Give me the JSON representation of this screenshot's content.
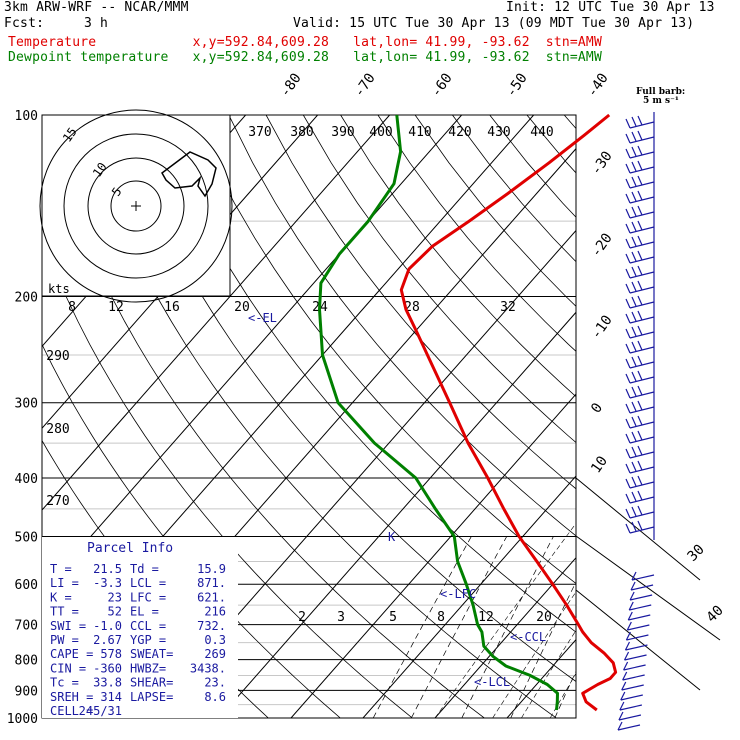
{
  "header": {
    "model": "3km ARW-WRF -- NCAR/MMM",
    "init": "Init: 12 UTC Tue 30 Apr 13",
    "fcst_label": "Fcst:",
    "fcst_value": "3 h",
    "valid": "Valid: 15 UTC Tue 30 Apr 13 (09 MDT Tue 30 Apr 13)",
    "temp_line": "Temperature            x,y=592.84,609.28   lat,lon= 41.99, -93.62  stn=AMW",
    "dew_line": "Dewpoint temperature   x,y=592.84,609.28   lat,lon= 41.99, -93.62  stn=AMW"
  },
  "colors": {
    "temperature": "#e00000",
    "dewpoint": "#008000",
    "parcel": "#1a1aa0",
    "grid": "#000000"
  },
  "barb_legend": [
    "Full barb:",
    "5 m s⁻¹"
  ],
  "parcel_info": {
    "title": "Parcel Info",
    "rows": [
      [
        "T  =",
        "21.5",
        "Td =",
        "15.9"
      ],
      [
        "LI =",
        "-3.3",
        "LCL =",
        "871."
      ],
      [
        "K  =",
        "23",
        "LFC =",
        "621."
      ],
      [
        "TT =",
        "52",
        "EL  =",
        "216"
      ],
      [
        "SWI =",
        "-1.0",
        "CCL =",
        "732."
      ],
      [
        "PW =",
        "2.67",
        "YGP =",
        "0.3"
      ],
      [
        "CAPE =",
        "578",
        "SWEAT=",
        "269"
      ],
      [
        "CIN =",
        "-360",
        "HWBZ=",
        "3438."
      ],
      [
        "Tc =",
        "33.8",
        "SHEAR=",
        "23."
      ],
      [
        "SREH =",
        "314",
        "LAPSE=",
        "8.6"
      ],
      [
        "CELL =",
        "245/31",
        "",
        ""
      ]
    ]
  },
  "hodograph": {
    "unit": "kts",
    "ring_labels": [
      "5",
      "10",
      "15"
    ]
  },
  "parcel_markers": [
    "<-EL",
    "K",
    "<-LFC",
    "<-CCL",
    "<-LCL"
  ],
  "chart_data": {
    "type": "line",
    "title": "",
    "y_axis": "pressure (hPa), log scale",
    "ylim": [
      1000,
      100
    ],
    "pressure_ticks": [
      100,
      200,
      300,
      400,
      500,
      600,
      700,
      800,
      900,
      1000
    ],
    "isotherm_labels": [
      "-80",
      "-70",
      "-60",
      "-50",
      "-40",
      "-30",
      "-20",
      "-10",
      "0",
      "10",
      "20",
      "30",
      "40"
    ],
    "mixing_ratio_labels": [
      "2",
      "3",
      "5",
      "8",
      "12",
      "20"
    ],
    "theta_e_labels_top": [
      "370",
      "380",
      "390",
      "400",
      "410",
      "420",
      "430",
      "440"
    ],
    "theta_e_labels_mid": [
      "8",
      "12",
      "16",
      "20",
      "24",
      "28",
      "32"
    ],
    "theta_labels_left": [
      "290",
      "280",
      "270"
    ],
    "series": [
      {
        "name": "Temperature",
        "points": [
          [
            970,
            21.5
          ],
          [
            940,
            19.0
          ],
          [
            910,
            17.5
          ],
          [
            880,
            18.5
          ],
          [
            860,
            19.5
          ],
          [
            840,
            19.5
          ],
          [
            810,
            18.0
          ],
          [
            780,
            15.5
          ],
          [
            750,
            12.5
          ],
          [
            720,
            10.0
          ],
          [
            700,
            8.5
          ],
          [
            650,
            4.5
          ],
          [
            600,
            0.0
          ],
          [
            550,
            -5.0
          ],
          [
            500,
            -10.5
          ],
          [
            450,
            -16.0
          ],
          [
            400,
            -22.0
          ],
          [
            350,
            -29.0
          ],
          [
            300,
            -36.5
          ],
          [
            260,
            -43.5
          ],
          [
            230,
            -49.5
          ],
          [
            210,
            -54.0
          ],
          [
            195,
            -57.0
          ],
          [
            180,
            -58.5
          ],
          [
            165,
            -58.0
          ],
          [
            150,
            -56.0
          ],
          [
            135,
            -54.0
          ],
          [
            120,
            -52.0
          ],
          [
            108,
            -50.5
          ],
          [
            100,
            -49.5
          ]
        ]
      },
      {
        "name": "Dewpoint temperature",
        "points": [
          [
            970,
            15.9
          ],
          [
            940,
            15.0
          ],
          [
            910,
            14.0
          ],
          [
            880,
            11.5
          ],
          [
            850,
            8.0
          ],
          [
            820,
            3.5
          ],
          [
            790,
            0.5
          ],
          [
            760,
            -2.0
          ],
          [
            720,
            -4.0
          ],
          [
            700,
            -5.5
          ],
          [
            650,
            -8.5
          ],
          [
            600,
            -12.0
          ],
          [
            550,
            -16.0
          ],
          [
            500,
            -19.5
          ],
          [
            450,
            -25.5
          ],
          [
            400,
            -32.0
          ],
          [
            350,
            -42.0
          ],
          [
            300,
            -52.0
          ],
          [
            250,
            -60.0
          ],
          [
            210,
            -66.0
          ],
          [
            190,
            -69.0
          ],
          [
            170,
            -70.0
          ],
          [
            150,
            -70.0
          ],
          [
            130,
            -71.0
          ],
          [
            115,
            -74.0
          ],
          [
            100,
            -79.0
          ]
        ]
      }
    ]
  }
}
